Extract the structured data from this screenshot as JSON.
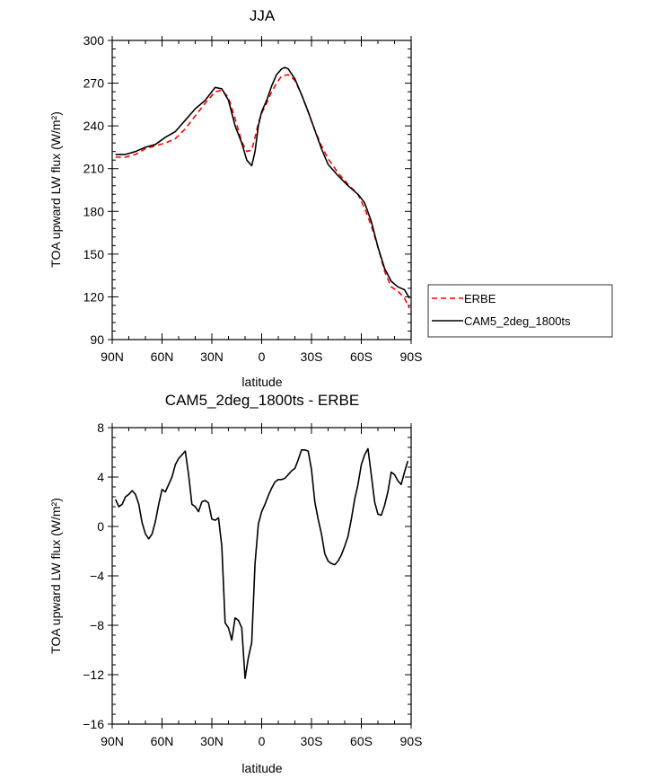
{
  "chart_data": [
    {
      "type": "line",
      "title": "JJA",
      "xlabel": "latitude",
      "ylabel": "TOA upward LW flux (W/m²)",
      "xlim": [
        -90,
        90
      ],
      "ylim": [
        90,
        300
      ],
      "xticks": [
        -90,
        -60,
        -30,
        0,
        30,
        60,
        90
      ],
      "xtick_labels": [
        "90N",
        "60N",
        "30N",
        "0",
        "30S",
        "60S",
        "90S"
      ],
      "yticks": [
        90,
        120,
        150,
        180,
        210,
        240,
        270,
        300
      ],
      "ytick_labels": [
        "90",
        "120",
        "150",
        "180",
        "210",
        "240",
        "270",
        "300"
      ],
      "grid": false,
      "legend_position": "right",
      "series": [
        {
          "name": "ERBE",
          "color": "#ff0000",
          "dash": "dashed",
          "x": [
            -88,
            -82,
            -76,
            -70,
            -64,
            -58,
            -52,
            -46,
            -40,
            -34,
            -28,
            -24,
            -20,
            -16,
            -12,
            -9,
            -6,
            -4,
            -2,
            0,
            3,
            6,
            9,
            12,
            16,
            20,
            24,
            28,
            32,
            36,
            40,
            46,
            52,
            58,
            62,
            66,
            70,
            74,
            78,
            82,
            86,
            89
          ],
          "y": [
            218,
            218,
            220,
            224,
            226,
            228,
            231,
            238,
            247,
            256,
            264,
            265,
            260,
            245,
            229,
            222,
            223,
            232,
            242,
            249,
            256,
            264,
            270,
            275,
            276,
            272,
            262,
            250,
            237,
            226,
            217,
            207,
            199,
            192,
            182,
            170,
            155,
            138,
            127,
            124,
            119,
            112
          ]
        },
        {
          "name": "CAM5_2deg_1800ts",
          "color": "#000000",
          "dash": "solid",
          "x": [
            -88,
            -82,
            -76,
            -70,
            -64,
            -58,
            -52,
            -46,
            -40,
            -34,
            -28,
            -24,
            -20,
            -16,
            -12,
            -9,
            -6,
            -4,
            -2,
            0,
            3,
            6,
            9,
            12,
            14,
            16,
            20,
            24,
            28,
            32,
            36,
            40,
            46,
            52,
            58,
            62,
            66,
            70,
            74,
            78,
            82,
            86,
            89
          ],
          "y": [
            220,
            220,
            222,
            225,
            227,
            232,
            236,
            244,
            252,
            258,
            267,
            266,
            258,
            240,
            228,
            216,
            212,
            222,
            240,
            250,
            258,
            268,
            276,
            280,
            281,
            280,
            273,
            262,
            250,
            237,
            224,
            213,
            205,
            198,
            192,
            186,
            173,
            155,
            140,
            131,
            127,
            125,
            119
          ]
        }
      ]
    },
    {
      "type": "line",
      "title": "CAM5_2deg_1800ts - ERBE",
      "xlabel": "latitude",
      "ylabel": "TOA upward LW flux (W/m²)",
      "xlim": [
        -90,
        90
      ],
      "ylim": [
        -16,
        8
      ],
      "xticks": [
        -90,
        -60,
        -30,
        0,
        30,
        60,
        90
      ],
      "xtick_labels": [
        "90N",
        "60N",
        "30N",
        "0",
        "30S",
        "60S",
        "90S"
      ],
      "yticks": [
        -16,
        -12,
        -8,
        -4,
        0,
        4,
        8
      ],
      "ytick_labels": [
        "−16",
        "−12",
        "−8",
        "−4",
        "0",
        "4",
        "8"
      ],
      "grid": false,
      "series": [
        {
          "color": "#000000",
          "dash": "solid",
          "x": [
            -88,
            -86,
            -84,
            -82,
            -80,
            -78,
            -76,
            -74,
            -72,
            -70,
            -68,
            -66,
            -64,
            -62,
            -60,
            -58,
            -56,
            -54,
            -52,
            -50,
            -48,
            -46,
            -44,
            -42,
            -40,
            -38,
            -36,
            -34,
            -32,
            -30,
            -28,
            -26,
            -24,
            -22,
            -20,
            -18,
            -16,
            -14,
            -12,
            -10,
            -8,
            -6,
            -4,
            -2,
            0,
            2,
            4,
            6,
            8,
            10,
            12,
            14,
            16,
            18,
            20,
            22,
            24,
            26,
            28,
            30,
            32,
            34,
            36,
            38,
            40,
            42,
            44,
            46,
            48,
            50,
            52,
            54,
            56,
            58,
            60,
            62,
            64,
            66,
            68,
            70,
            72,
            74,
            76,
            78,
            80,
            82,
            84,
            86,
            88
          ],
          "y": [
            2.2,
            1.6,
            1.8,
            2.4,
            2.6,
            2.9,
            2.6,
            1.8,
            0.3,
            -0.6,
            -1.0,
            -0.6,
            0.4,
            1.8,
            3.0,
            2.8,
            3.4,
            4.0,
            5.0,
            5.5,
            5.8,
            6.1,
            4.2,
            1.8,
            1.6,
            1.2,
            2.0,
            2.1,
            1.9,
            0.6,
            0.5,
            0.7,
            -1.6,
            -7.8,
            -8.2,
            -9.2,
            -7.4,
            -7.6,
            -8.2,
            -12.3,
            -10.6,
            -9.4,
            -3.0,
            0.2,
            1.2,
            1.8,
            2.5,
            3.1,
            3.6,
            3.8,
            3.8,
            3.9,
            4.2,
            4.5,
            4.7,
            5.4,
            6.2,
            6.2,
            6.1,
            4.6,
            2.0,
            0.6,
            -0.6,
            -2.2,
            -2.8,
            -3.0,
            -3.1,
            -2.8,
            -2.3,
            -1.6,
            -0.8,
            0.6,
            2.2,
            3.4,
            5.0,
            5.8,
            6.3,
            4.2,
            2.0,
            1.0,
            0.9,
            1.7,
            2.8,
            4.4,
            4.2,
            3.7,
            3.4,
            4.4,
            5.3
          ]
        }
      ]
    }
  ]
}
